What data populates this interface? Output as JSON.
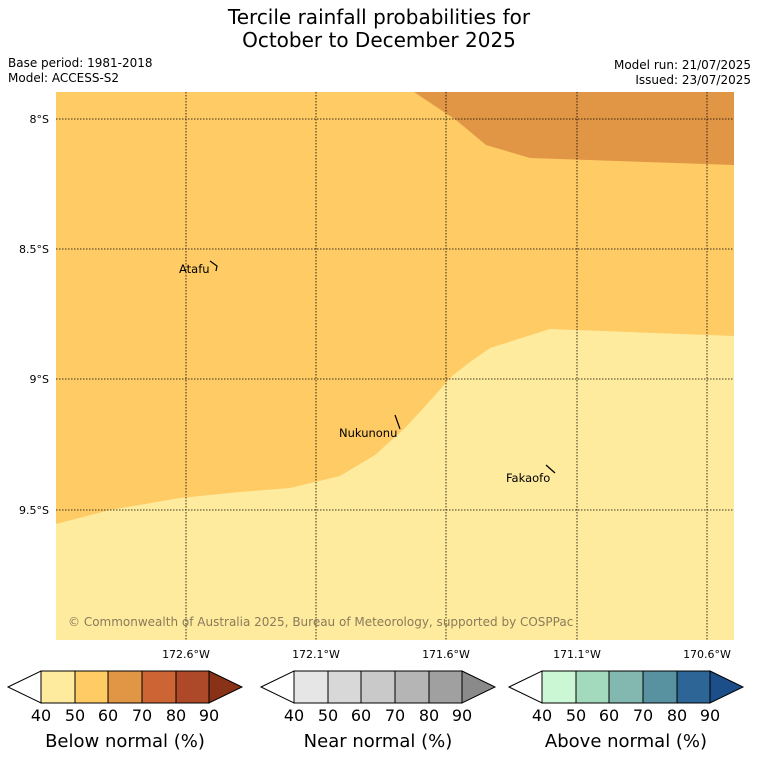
{
  "title": {
    "line1": "Tercile rainfall probabilities for",
    "line2": "October to December 2025"
  },
  "info": {
    "base_period": "Base period: 1981-2018",
    "model": "Model: ACCESS-S2",
    "model_run": "Model run: 21/07/2025",
    "issued": "Issued: 23/07/2025"
  },
  "map": {
    "lat_labels": [
      "8°S",
      "8.5°S",
      "9°S",
      "9.5°S"
    ],
    "lon_labels": [
      "172.6°W",
      "172.1°W",
      "171.6°W",
      "171.1°W",
      "170.6°W"
    ],
    "places": [
      "Atafu",
      "Nukunonu",
      "Fakaofo"
    ],
    "copyright": "© Commonwealth of Australia 2025, Bureau of Meteorology, supported by COSPPac",
    "zone_colors": {
      "below_40_50": "#feeb9e",
      "below_50_60": "#fecb65",
      "below_60_70": "#e19646"
    }
  },
  "colorbars": [
    {
      "label": "Below normal (%)",
      "ticks": [
        "40",
        "50",
        "60",
        "70",
        "80",
        "90"
      ],
      "colors": [
        "#ffffff",
        "#feeb9e",
        "#fecb65",
        "#e19646",
        "#cc6533",
        "#ad4828",
        "#893218"
      ]
    },
    {
      "label": "Near normal (%)",
      "ticks": [
        "40",
        "50",
        "60",
        "70",
        "80",
        "90"
      ],
      "colors": [
        "#ffffff",
        "#e6e6e6",
        "#d8d8d8",
        "#c9c9c9",
        "#b5b5b5",
        "#a0a0a0",
        "#8a8a8a"
      ]
    },
    {
      "label": "Above normal (%)",
      "ticks": [
        "40",
        "50",
        "60",
        "70",
        "80",
        "90"
      ],
      "colors": [
        "#ffffff",
        "#cbf7d5",
        "#a3d9bd",
        "#82b8b0",
        "#5891a0",
        "#2d6596",
        "#1c4f8a"
      ]
    }
  ]
}
